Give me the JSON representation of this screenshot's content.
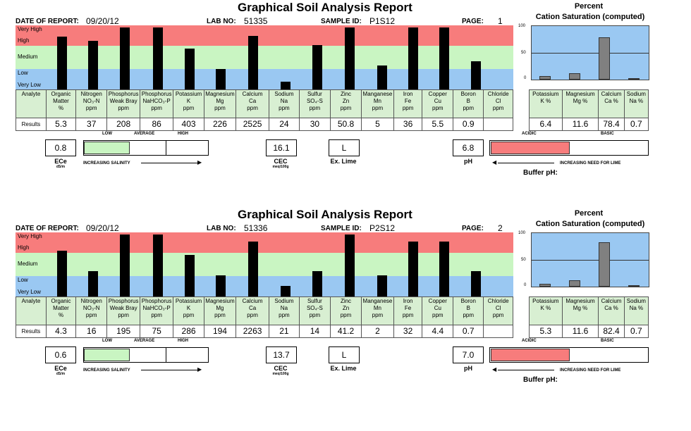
{
  "reports": [
    {
      "title": "Graphical Soil Analysis Report",
      "date_label": "DATE OF REPORT:",
      "date": "09/20/12",
      "lab_label": "LAB NO:",
      "lab_no": "51335",
      "sample_label": "SAMPLE ID:",
      "sample_id": "P1S12",
      "page_label": "PAGE:",
      "page": "1",
      "cation_title_1": "Percent",
      "cation_title_2": "Cation Saturation (computed)",
      "bands": [
        "Very High",
        "High",
        "Medium",
        "Low",
        "Very Low"
      ],
      "row_header": "Analyte",
      "results_header": "Results",
      "analytes": [
        {
          "l1": "Organic",
          "l2": "Matter",
          "l3": "%",
          "result": "5.3",
          "level": 0.82
        },
        {
          "l1": "Nitrogen",
          "l2": "NO₃-N",
          "l3": "ppm",
          "result": "37",
          "level": 0.76
        },
        {
          "l1": "Phosphorus",
          "l2": "Weak Bray",
          "l3": "ppm",
          "result": "208",
          "level": 0.97
        },
        {
          "l1": "Phosphorus",
          "l2": "NaHCO₃-P",
          "l3": "ppm",
          "result": "86",
          "level": 0.97
        },
        {
          "l1": "Potassium",
          "l2": "K",
          "l3": "ppm",
          "result": "403",
          "level": 0.64
        },
        {
          "l1": "Magnesium",
          "l2": "Mg",
          "l3": "ppm",
          "result": "226",
          "level": 0.32
        },
        {
          "l1": "Calcium",
          "l2": "Ca",
          "l3": "ppm",
          "result": "2525",
          "level": 0.84
        },
        {
          "l1": "Sodium",
          "l2": "Na",
          "l3": "ppm",
          "result": "24",
          "level": 0.12
        },
        {
          "l1": "Sulfur",
          "l2": "SO₄-S",
          "l3": "ppm",
          "result": "30",
          "level": 0.69
        },
        {
          "l1": "Zinc",
          "l2": "Zn",
          "l3": "ppm",
          "result": "50.8",
          "level": 0.97
        },
        {
          "l1": "Manganese",
          "l2": "Mn",
          "l3": "ppm",
          "result": "5",
          "level": 0.37
        },
        {
          "l1": "Iron",
          "l2": "Fe",
          "l3": "ppm",
          "result": "36",
          "level": 0.97
        },
        {
          "l1": "Copper",
          "l2": "Cu",
          "l3": "ppm",
          "result": "5.5",
          "level": 0.97
        },
        {
          "l1": "Boron",
          "l2": "B",
          "l3": "ppm",
          "result": "0.9",
          "level": 0.44
        },
        {
          "l1": "Chloride",
          "l2": "Cl",
          "l3": "ppm",
          "result": "",
          "level": 0
        }
      ],
      "cations": [
        {
          "l1": "Potassium",
          "l2": "K %",
          "result": "6.4",
          "value": 6.4
        },
        {
          "l1": "Magnesium",
          "l2": "Mg %",
          "result": "11.6",
          "value": 11.6
        },
        {
          "l1": "Calcium",
          "l2": "Ca %",
          "result": "78.4",
          "value": 78.4
        },
        {
          "l1": "Sodium",
          "l2": "Na %",
          "result": "0.7",
          "value": 0.7
        }
      ],
      "cation_axis": [
        "100",
        "50",
        "0"
      ],
      "salinity_scale": [
        "LOW",
        "AVERAGE",
        "HIGH"
      ],
      "ece_value": "0.8",
      "ece_label": "ECe",
      "ece_unit": "dS/m",
      "salinity_text": "INCREASING SALINITY",
      "cec_value": "16.1",
      "cec_label": "CEC",
      "cec_unit": "meq/100g",
      "lime_value": "L",
      "lime_label": "Ex. Lime",
      "ph_value": "6.8",
      "ph_label": "pH",
      "acidic": "ACIDIC",
      "basic": "BASIC",
      "lime_need_text": "INCREASING NEED FOR LIME",
      "buffer_label": "Buffer pH:"
    },
    {
      "title": "Graphical Soil Analysis Report",
      "date_label": "DATE OF REPORT:",
      "date": "09/20/12",
      "lab_label": "LAB NO:",
      "lab_no": "51336",
      "sample_label": "SAMPLE ID:",
      "sample_id": "P2S12",
      "page_label": "PAGE:",
      "page": "2",
      "cation_title_1": "Percent",
      "cation_title_2": "Cation Saturation (computed)",
      "bands": [
        "Very High",
        "High",
        "Medium",
        "Low",
        "Very Low"
      ],
      "row_header": "Analyte",
      "results_header": "Results",
      "analytes": [
        {
          "l1": "Organic",
          "l2": "Matter",
          "l3": "%",
          "result": "4.3",
          "level": 0.71
        },
        {
          "l1": "Nitrogen",
          "l2": "NO₃-N",
          "l3": "ppm",
          "result": "16",
          "level": 0.4
        },
        {
          "l1": "Phosphorus",
          "l2": "Weak Bray",
          "l3": "ppm",
          "result": "195",
          "level": 0.97
        },
        {
          "l1": "Phosphorus",
          "l2": "NaHCO₃-P",
          "l3": "ppm",
          "result": "75",
          "level": 0.97
        },
        {
          "l1": "Potassium",
          "l2": "K",
          "l3": "ppm",
          "result": "286",
          "level": 0.65
        },
        {
          "l1": "Magnesium",
          "l2": "Mg",
          "l3": "ppm",
          "result": "194",
          "level": 0.33
        },
        {
          "l1": "Calcium",
          "l2": "Ca",
          "l3": "ppm",
          "result": "2263",
          "level": 0.86
        },
        {
          "l1": "Sodium",
          "l2": "Na",
          "l3": "ppm",
          "result": "21",
          "level": 0.16
        },
        {
          "l1": "Sulfur",
          "l2": "SO₄-S",
          "l3": "ppm",
          "result": "14",
          "level": 0.4
        },
        {
          "l1": "Zinc",
          "l2": "Zn",
          "l3": "ppm",
          "result": "41.2",
          "level": 0.97
        },
        {
          "l1": "Manganese",
          "l2": "Mn",
          "l3": "ppm",
          "result": "2",
          "level": 0.33
        },
        {
          "l1": "Iron",
          "l2": "Fe",
          "l3": "ppm",
          "result": "32",
          "level": 0.86
        },
        {
          "l1": "Copper",
          "l2": "Cu",
          "l3": "ppm",
          "result": "4.4",
          "level": 0.86
        },
        {
          "l1": "Boron",
          "l2": "B",
          "l3": "ppm",
          "result": "0.7",
          "level": 0.4
        },
        {
          "l1": "Chloride",
          "l2": "Cl",
          "l3": "ppm",
          "result": "",
          "level": 0
        }
      ],
      "cations": [
        {
          "l1": "Potassium",
          "l2": "K %",
          "result": "5.3",
          "value": 5.3
        },
        {
          "l1": "Magnesium",
          "l2": "Mg %",
          "result": "11.6",
          "value": 11.6
        },
        {
          "l1": "Calcium",
          "l2": "Ca %",
          "result": "82.4",
          "value": 82.4
        },
        {
          "l1": "Sodium",
          "l2": "Na %",
          "result": "0.7",
          "value": 0.7
        }
      ],
      "cation_axis": [
        "100",
        "50",
        "0"
      ],
      "salinity_scale": [
        "LOW",
        "AVERAGE",
        "HIGH"
      ],
      "ece_value": "0.6",
      "ece_label": "ECe",
      "ece_unit": "dS/m",
      "salinity_text": "INCREASING SALINITY",
      "cec_value": "13.7",
      "cec_label": "CEC",
      "cec_unit": "meq/100g",
      "lime_value": "L",
      "lime_label": "Ex. Lime",
      "ph_value": "7.0",
      "ph_label": "pH",
      "acidic": "ACIDIC",
      "basic": "BASIC",
      "lime_need_text": "INCREASING NEED FOR LIME",
      "buffer_label": "Buffer pH:"
    }
  ],
  "colors": {
    "very_high": "#f77c7c",
    "high": "#f77c7c",
    "medium": "#c9f5c2",
    "low": "#9ac8f2",
    "very_low": "#9ac8f2",
    "salinity_fill": "#c9f5c2",
    "lime_fill": "#f77c7c"
  }
}
